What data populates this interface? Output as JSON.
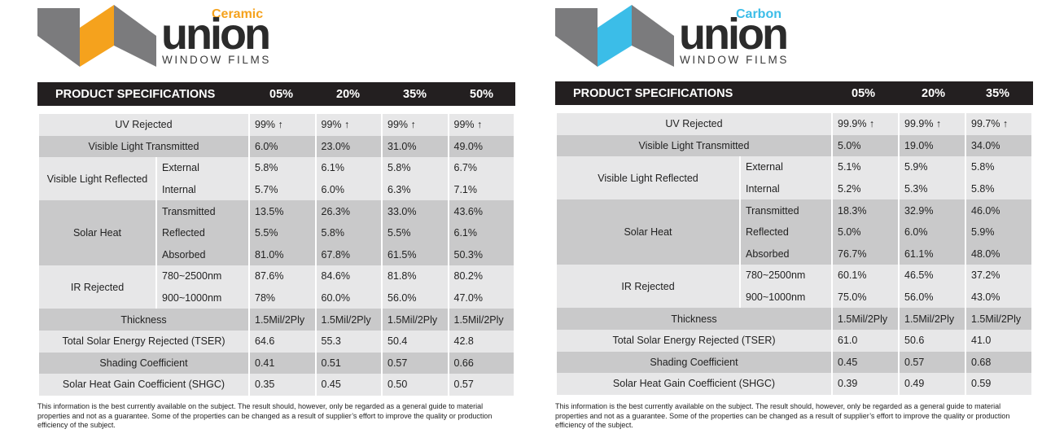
{
  "left": {
    "brand": {
      "variant": "Ceramic",
      "name": "union",
      "sub": "WINDOW FILMS",
      "accent": "#f5a21d"
    },
    "header": {
      "title": "PRODUCT SPECIFICATIONS",
      "cols": [
        "05%",
        "20%",
        "35%",
        "50%"
      ]
    },
    "rows": {
      "uv": {
        "label": "UV Rejected",
        "vals": [
          "99% ↑",
          "99% ↑",
          "99% ↑",
          "99% ↑"
        ]
      },
      "vlt": {
        "label": "Visible Light Transmitted",
        "vals": [
          "6.0%",
          "23.0%",
          "31.0%",
          "49.0%"
        ]
      },
      "vlr_group": "Visible Light Reflected",
      "vlr_ext": {
        "label": "External",
        "vals": [
          "5.8%",
          "6.1%",
          "5.8%",
          "6.7%"
        ]
      },
      "vlr_int": {
        "label": "Internal",
        "vals": [
          "5.7%",
          "6.0%",
          "6.3%",
          "7.1%"
        ]
      },
      "sh_group": "Solar Heat",
      "sh_trans": {
        "label": "Transmitted",
        "vals": [
          "13.5%",
          "26.3%",
          "33.0%",
          "43.6%"
        ]
      },
      "sh_refl": {
        "label": "Reflected",
        "vals": [
          "5.5%",
          "5.8%",
          "5.5%",
          "6.1%"
        ]
      },
      "sh_abs": {
        "label": "Absorbed",
        "vals": [
          "81.0%",
          "67.8%",
          "61.5%",
          "50.3%"
        ]
      },
      "ir_group": "IR Rejected",
      "ir_1": {
        "label": "780~2500nm",
        "vals": [
          "87.6%",
          "84.6%",
          "81.8%",
          "80.2%"
        ]
      },
      "ir_2": {
        "label": "900~1000nm",
        "vals": [
          "78%",
          "60.0%",
          "56.0%",
          "47.0%"
        ]
      },
      "thick": {
        "label": "Thickness",
        "vals": [
          "1.5Mil/2Ply",
          "1.5Mil/2Ply",
          "1.5Mil/2Ply",
          "1.5Mil/2Ply"
        ]
      },
      "tser": {
        "label": "Total Solar Energy Rejected (TSER)",
        "vals": [
          "64.6",
          "55.3",
          "50.4",
          "42.8"
        ]
      },
      "sc": {
        "label": "Shading Coefficient",
        "vals": [
          "0.41",
          "0.51",
          "0.57",
          "0.66"
        ]
      },
      "shgc": {
        "label": "Solar Heat Gain Coefficient (SHGC)",
        "vals": [
          "0.35",
          "0.45",
          "0.50",
          "0.57"
        ]
      }
    },
    "disclaimer": "This information is the best currently available on the subject. The result should, however, only be regarded as a general guide to material properties and not as a guarantee. Some of the properties can be changed as a result of supplier’s effort to improve the quality or production efficiency of the subject."
  },
  "right": {
    "brand": {
      "variant": "Carbon",
      "name": "union",
      "sub": "WINDOW FILMS",
      "accent": "#3bbde8"
    },
    "header": {
      "title": "PRODUCT SPECIFICATIONS",
      "cols": [
        "05%",
        "20%",
        "35%"
      ]
    },
    "rows": {
      "uv": {
        "label": "UV Rejected",
        "vals": [
          "99.9% ↑",
          "99.9% ↑",
          "99.7% ↑"
        ]
      },
      "vlt": {
        "label": "Visible Light Transmitted",
        "vals": [
          "5.0%",
          "19.0%",
          "34.0%"
        ]
      },
      "vlr_group": "Visible Light Reflected",
      "vlr_ext": {
        "label": "External",
        "vals": [
          "5.1%",
          "5.9%",
          "5.8%"
        ]
      },
      "vlr_int": {
        "label": "Internal",
        "vals": [
          "5.2%",
          "5.3%",
          "5.8%"
        ]
      },
      "sh_group": "Solar Heat",
      "sh_trans": {
        "label": "Transmitted",
        "vals": [
          "18.3%",
          "32.9%",
          "46.0%"
        ]
      },
      "sh_refl": {
        "label": "Reflected",
        "vals": [
          "5.0%",
          "6.0%",
          "5.9%"
        ]
      },
      "sh_abs": {
        "label": "Absorbed",
        "vals": [
          "76.7%",
          "61.1%",
          "48.0%"
        ]
      },
      "ir_group": "IR Rejected",
      "ir_1": {
        "label": "780~2500nm",
        "vals": [
          "60.1%",
          "46.5%",
          "37.2%"
        ]
      },
      "ir_2": {
        "label": "900~1000nm",
        "vals": [
          "75.0%",
          "56.0%",
          "43.0%"
        ]
      },
      "thick": {
        "label": "Thickness",
        "vals": [
          "1.5Mil/2Ply",
          "1.5Mil/2Ply",
          "1.5Mil/2Ply"
        ]
      },
      "tser": {
        "label": "Total Solar Energy Rejected (TSER)",
        "vals": [
          "61.0",
          "50.6",
          "41.0"
        ]
      },
      "sc": {
        "label": "Shading Coefficient",
        "vals": [
          "0.45",
          "0.57",
          "0.68"
        ]
      },
      "shgc": {
        "label": "Solar Heat Gain Coefficient (SHGC)",
        "vals": [
          "0.39",
          "0.49",
          "0.59"
        ]
      }
    },
    "disclaimer": "This information is the best currently available on the subject. The result should, however, only be regarded as a general guide to material properties and not as a guarantee. Some of the properties can be changed as a result of supplier’s effort to improve the quality or production efficiency of the subject."
  }
}
